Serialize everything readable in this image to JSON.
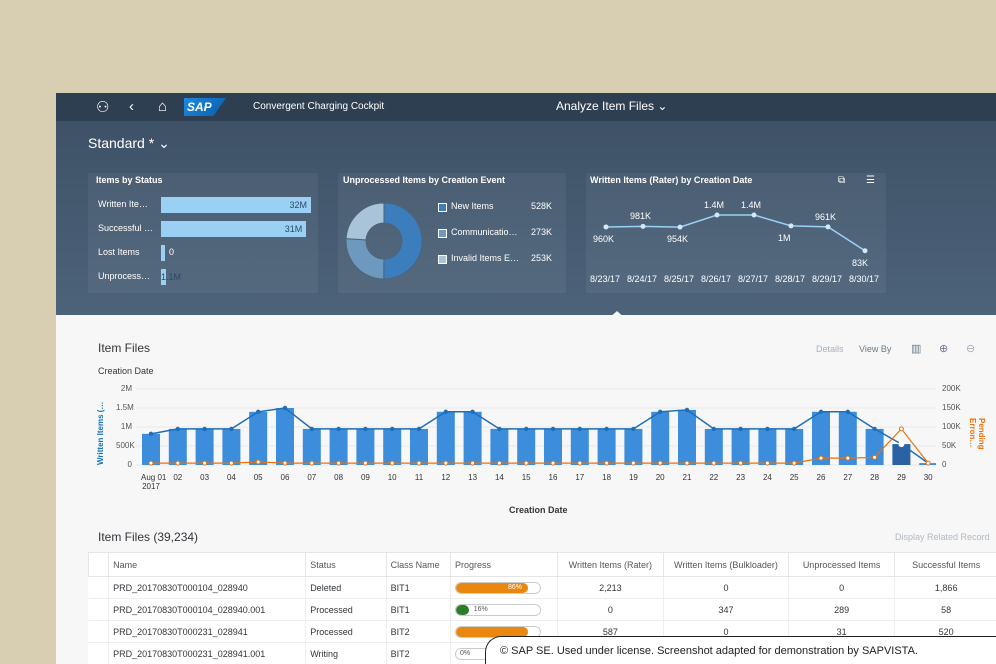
{
  "shell": {
    "app_title": "Convergent Charging Cockpit",
    "center_title": "Analyze Item Files",
    "logo": "SAP",
    "variant": "Standard *"
  },
  "cards": {
    "status": {
      "title": "Items by Status",
      "items": [
        {
          "label": "Written Ite…",
          "value_label": "32M",
          "value": 32
        },
        {
          "label": "Successful …",
          "value_label": "31M",
          "value": 31
        },
        {
          "label": "Lost Items",
          "value_label": "0",
          "value": 0
        },
        {
          "label": "Unprocess…",
          "value_label": "1.1M",
          "value": 1.1
        }
      ]
    },
    "unprocessed": {
      "title": "Unprocessed Items by Creation Event",
      "items": [
        {
          "label": "New Items",
          "value": "528K",
          "raw": 528
        },
        {
          "label": "Communicatio…",
          "value": "273K",
          "raw": 273
        },
        {
          "label": "Invalid Items E…",
          "value": "253K",
          "raw": 253
        }
      ]
    },
    "written": {
      "title": "Written Items (Rater) by Creation Date",
      "dates": [
        "8/23/17",
        "8/24/17",
        "8/25/17",
        "8/26/17",
        "8/27/17",
        "8/28/17",
        "8/29/17",
        "8/30/17"
      ],
      "labels": [
        "960K",
        "981K",
        "954K",
        "1.4M",
        "1.4M",
        "1M",
        "961K",
        "83K"
      ],
      "values": [
        960,
        981,
        954,
        1400,
        1400,
        1000,
        961,
        83
      ]
    }
  },
  "item_files_chart": {
    "section_title": "Item Files",
    "details": "Details",
    "view_by": "View By",
    "legend": "Creation Date",
    "xlabel": "Creation Date",
    "ylabel_left": "Written Items (…",
    "ylabel_right": "Pending Erron…",
    "y_left": [
      "2M",
      "1.5M",
      "1M",
      "500K",
      "0"
    ],
    "y_right": [
      "200K",
      "150K",
      "100K",
      "50K",
      "0"
    ],
    "x": [
      "Aug 01\n2017",
      "02",
      "03",
      "04",
      "05",
      "06",
      "07",
      "08",
      "09",
      "10",
      "11",
      "12",
      "13",
      "14",
      "15",
      "16",
      "17",
      "18",
      "19",
      "20",
      "21",
      "22",
      "23",
      "24",
      "25",
      "26",
      "27",
      "28",
      "29",
      "30"
    ],
    "bars": [
      0.82,
      0.95,
      0.95,
      0.95,
      1.4,
      1.5,
      0.95,
      0.95,
      0.95,
      0.95,
      0.95,
      1.4,
      1.4,
      0.95,
      0.95,
      0.95,
      0.95,
      0.95,
      0.95,
      1.4,
      1.45,
      0.95,
      0.95,
      0.95,
      0.95,
      1.4,
      1.4,
      0.95,
      0.55,
      0.05
    ],
    "line": [
      0.82,
      0.95,
      0.95,
      0.95,
      1.4,
      1.5,
      0.95,
      0.95,
      0.95,
      0.95,
      0.95,
      1.4,
      1.4,
      0.95,
      0.95,
      0.95,
      0.95,
      0.95,
      0.95,
      1.4,
      1.45,
      0.95,
      0.95,
      0.95,
      0.95,
      1.4,
      1.4,
      0.95,
      0.55,
      0.05
    ],
    "pending": [
      5,
      5,
      5,
      5,
      8,
      5,
      5,
      5,
      5,
      5,
      5,
      5,
      5,
      5,
      5,
      5,
      5,
      5,
      5,
      5,
      5,
      5,
      5,
      5,
      5,
      18,
      18,
      20,
      95,
      5
    ]
  },
  "table": {
    "title": "Item Files (39,234)",
    "related": "Display Related Record",
    "headers": [
      "Name",
      "Status",
      "Class Name",
      "Progress",
      "Written Items (Rater)",
      "Written Items (Bulkloader)",
      "Unprocessed Items",
      "Successful Items"
    ],
    "rows": [
      {
        "name": "PRD_20170830T000104_028940",
        "status": "Deleted",
        "class": "BIT1",
        "progress": "86%",
        "pct": 86,
        "color": "#e9870e",
        "rater": "2,213",
        "bulk": "0",
        "unproc": "0",
        "succ": "1,866"
      },
      {
        "name": "PRD_20170830T000104_028940.001",
        "status": "Processed",
        "class": "BIT1",
        "progress": "16%",
        "pct": 16,
        "color": "#2b7d2b",
        "rater": "0",
        "bulk": "347",
        "unproc": "289",
        "succ": "58"
      },
      {
        "name": "PRD_20170830T000231_028941",
        "status": "Processed",
        "class": "BIT2",
        "progress": "",
        "pct": 86,
        "color": "#e9870e",
        "rater": "587",
        "bulk": "0",
        "unproc": "31",
        "succ": "520"
      },
      {
        "name": "PRD_20170830T000231_028941.001",
        "status": "Writing",
        "class": "BIT2",
        "progress": "0%",
        "pct": 0,
        "color": "#e9870e",
        "rater": "",
        "bulk": "",
        "unproc": "",
        "succ": ""
      }
    ]
  },
  "footer": "© SAP SE. Used under license. Screenshot adapted for demonstration by SAPVISTA."
}
